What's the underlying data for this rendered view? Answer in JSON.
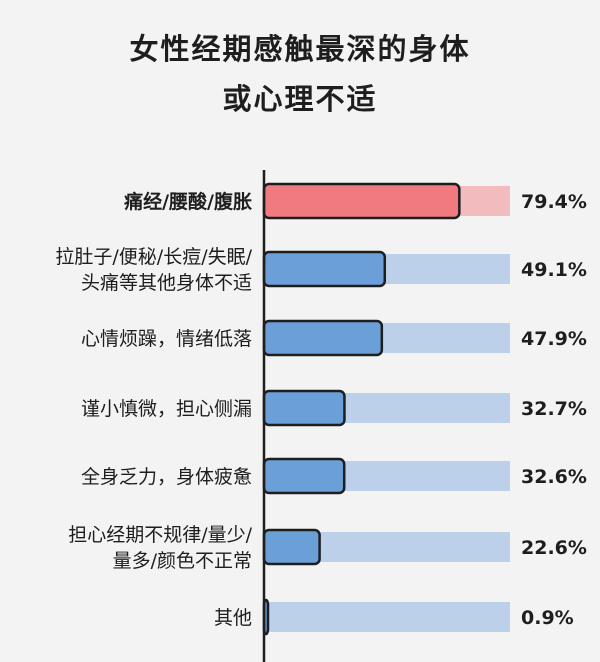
{
  "chart_data": {
    "type": "bar",
    "orientation": "horizontal",
    "title_lines": [
      "女性经期感触最深的身体",
      "或心理不适"
    ],
    "categories": [
      [
        "痛经/腰酸/腹胀"
      ],
      [
        "拉肚子/便秘/长痘/失眠/",
        "头痛等其他身体不适"
      ],
      [
        "心情烦躁，情绪低落"
      ],
      [
        "谨小慎微，担心侧漏"
      ],
      [
        "全身乏力，身体疲惫"
      ],
      [
        "担心经期不规律/量少/",
        "量多/颜色不正常"
      ],
      [
        "其他"
      ]
    ],
    "values": [
      79.4,
      49.1,
      47.9,
      32.7,
      32.6,
      22.6,
      0.9
    ],
    "value_labels": [
      "79.4%",
      "49.1%",
      "47.9%",
      "32.7%",
      "32.6%",
      "22.6%",
      "0.9%"
    ],
    "xlim": [
      0,
      100
    ],
    "highlight_index": 0,
    "colors": {
      "highlight_bar": "#f07a80",
      "highlight_track": "#f2bcbe",
      "bar": "#6a9fd8",
      "track": "#bcd0ea",
      "outline": "#1e1e1e"
    },
    "grid": false,
    "legend": "none"
  }
}
